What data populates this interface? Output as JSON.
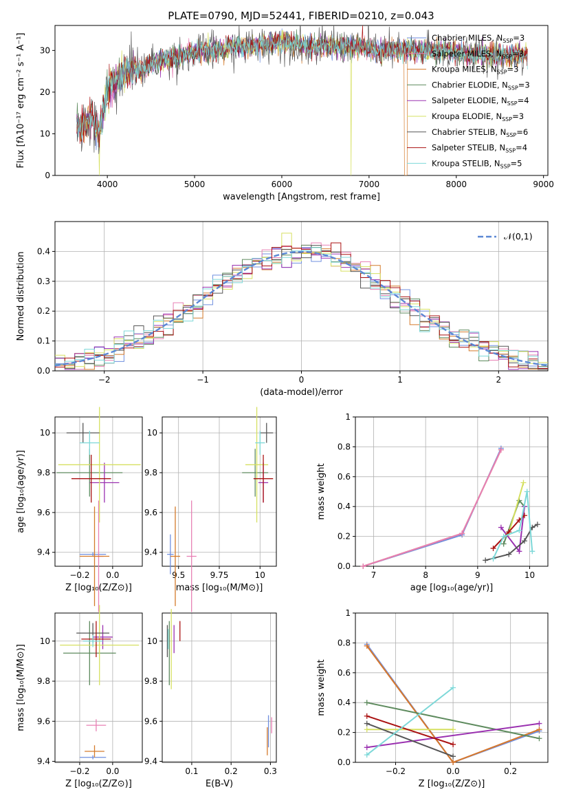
{
  "title": "PLATE=0790, MJD=52441, FIBERID=0210, z=0.043",
  "colors": {
    "Chabrier MILES": "#6f8fdf",
    "Salpeter MILES": "#e87fb4",
    "Kroupa MILES": "#d47a2a",
    "Chabrier ELODIE": "#5d8a5d",
    "Salpeter ELODIE": "#9a30b0",
    "Kroupa ELODIE": "#d6e060",
    "Chabrier STELIB": "#555555",
    "Salpeter STELIB": "#aa1111",
    "Kroupa STELIB": "#7dd8d8"
  },
  "chart_data": [
    {
      "id": "spectrum",
      "type": "line",
      "xlabel": "wavelength [Angstrom, rest frame]",
      "ylabel": "Flux [fλ10⁻¹⁷ erg cm⁻² s⁻¹ A⁻¹]",
      "xlim": [
        3400,
        9050
      ],
      "ylim": [
        0,
        36
      ],
      "xticks": [
        4000,
        5000,
        6000,
        7000,
        8000,
        9000
      ],
      "yticks": [
        0,
        10,
        20,
        30
      ],
      "legend": "right",
      "series": [
        {
          "name": "Chabrier MILES, N_SSP=3",
          "key": "Chabrier MILES"
        },
        {
          "name": "Salpeter MILES, N_SSP=3",
          "key": "Salpeter MILES"
        },
        {
          "name": "Kroupa MILES, N_SSP=3",
          "key": "Kroupa MILES"
        },
        {
          "name": "Chabrier ELODIE, N_SSP=3",
          "key": "Chabrier ELODIE"
        },
        {
          "name": "Salpeter ELODIE, N_SSP=4",
          "key": "Salpeter ELODIE"
        },
        {
          "name": "Kroupa ELODIE, N_SSP=3",
          "key": "Kroupa ELODIE"
        },
        {
          "name": "Chabrier STELIB, N_SSP=6",
          "key": "Chabrier STELIB"
        },
        {
          "name": "Salpeter STELIB, N_SSP=4",
          "key": "Salpeter STELIB"
        },
        {
          "name": "Kroupa STELIB, N_SSP=5",
          "key": "Kroupa STELIB"
        }
      ],
      "envelope": {
        "x": [
          3650,
          3700,
          3800,
          3900,
          4000,
          4100,
          4200,
          4300,
          4400,
          4500,
          4700,
          4900,
          5100,
          5300,
          5500,
          5700,
          5900,
          6100,
          6300,
          6500,
          6700,
          6900,
          7100,
          7300,
          7500,
          7700,
          7900,
          8100,
          8300,
          8500,
          8700,
          8820
        ],
        "y": [
          12,
          11,
          14,
          10,
          20,
          23,
          24,
          26,
          25,
          27,
          28,
          29,
          30,
          30,
          31,
          31,
          32,
          32,
          31,
          31,
          31,
          31,
          30,
          30,
          30,
          30,
          30,
          29,
          29,
          29,
          29,
          29
        ]
      }
    },
    {
      "id": "residuals",
      "type": "histogram",
      "xlabel": "(data-model)/error",
      "ylabel": "Normed distribution",
      "xlim": [
        -2.5,
        2.5
      ],
      "ylim": [
        0,
        0.5
      ],
      "xticks": [
        -2,
        -1,
        0,
        1,
        2
      ],
      "yticks": [
        0.0,
        0.1,
        0.2,
        0.3,
        0.4
      ],
      "legend": "top-right",
      "reference_label": "𝒩(0,1)",
      "bin_width": 0.1
    },
    {
      "id": "age_vs_Z",
      "type": "errorbar",
      "xlabel": "Z [log₁₀(Z/Z⊙)]",
      "ylabel": "age  [log₁₀(age/yr)]",
      "xlim": [
        -0.35,
        0.18
      ],
      "ylim": [
        9.33,
        10.08
      ],
      "xticks": [
        -0.2,
        0.0
      ],
      "yticks": [
        9.4,
        9.6,
        9.8,
        10.0
      ],
      "points": [
        {
          "key": "Chabrier MILES",
          "x": -0.12,
          "xerr": 0.08,
          "y": 9.39,
          "yerr": 0.01
        },
        {
          "key": "Salpeter MILES",
          "x": -0.085,
          "xerr": 0.03,
          "y": 9.38,
          "yerr": 0.28
        },
        {
          "key": "Kroupa MILES",
          "x": -0.11,
          "xerr": 0.09,
          "y": 9.38,
          "yerr": 0.25
        },
        {
          "key": "Chabrier ELODIE",
          "x": -0.14,
          "xerr": 0.2,
          "y": 9.8,
          "yerr": 0.12
        },
        {
          "key": "Salpeter ELODIE",
          "x": -0.05,
          "xerr": 0.09,
          "y": 9.75,
          "yerr": 0.1
        },
        {
          "key": "Kroupa ELODIE",
          "x": -0.08,
          "xerr": 0.25,
          "y": 9.84,
          "yerr": 0.29
        },
        {
          "key": "Chabrier STELIB",
          "x": -0.18,
          "xerr": 0.1,
          "y": 10.0,
          "yerr": 0.05
        },
        {
          "key": "Salpeter STELIB",
          "x": -0.13,
          "xerr": 0.12,
          "y": 9.77,
          "yerr": 0.12
        },
        {
          "key": "Kroupa STELIB",
          "x": -0.14,
          "xerr": 0.06,
          "y": 9.95,
          "yerr": 0.06
        }
      ]
    },
    {
      "id": "age_vs_mass",
      "type": "errorbar",
      "xlabel": "mass [log₁₀(M/M⊙)]",
      "xlim": [
        9.4,
        10.1
      ],
      "ylim": [
        9.33,
        10.08
      ],
      "xticks": [
        9.5,
        9.75,
        10.0
      ],
      "yticks": [
        9.4,
        9.6,
        9.8,
        10.0
      ],
      "points": [
        {
          "key": "Chabrier MILES",
          "x": 9.45,
          "xerr": 0.02,
          "y": 9.39,
          "yerr": 0.1
        },
        {
          "key": "Salpeter MILES",
          "x": 9.58,
          "xerr": 0.03,
          "y": 9.38,
          "yerr": 0.28
        },
        {
          "key": "Kroupa MILES",
          "x": 9.48,
          "xerr": 0.03,
          "y": 9.38,
          "yerr": 0.25
        },
        {
          "key": "Chabrier ELODIE",
          "x": 9.97,
          "xerr": 0.08,
          "y": 9.8,
          "yerr": 0.12
        },
        {
          "key": "Salpeter ELODIE",
          "x": 10.02,
          "xerr": 0.03,
          "y": 9.75,
          "yerr": 0.1
        },
        {
          "key": "Kroupa ELODIE",
          "x": 9.98,
          "xerr": 0.07,
          "y": 9.84,
          "yerr": 0.29
        },
        {
          "key": "Chabrier STELIB",
          "x": 10.04,
          "xerr": 0.04,
          "y": 10.0,
          "yerr": 0.05
        },
        {
          "key": "Salpeter STELIB",
          "x": 10.02,
          "xerr": 0.06,
          "y": 9.77,
          "yerr": 0.12
        },
        {
          "key": "Kroupa STELIB",
          "x": 10.0,
          "xerr": 0.03,
          "y": 9.95,
          "yerr": 0.06
        }
      ]
    },
    {
      "id": "mass_weight_vs_age",
      "type": "line",
      "xlabel": "age  [log₁₀(age/yr)]",
      "ylabel": "mass weight",
      "xlim": [
        6.65,
        10.35
      ],
      "ylim": [
        0,
        1
      ],
      "xticks": [
        7,
        8,
        9,
        10
      ],
      "yticks": [
        0.0,
        0.2,
        0.4,
        0.6,
        0.8,
        1.0
      ],
      "series": [
        {
          "key": "Chabrier MILES",
          "x": [
            6.8,
            8.7,
            9.45
          ],
          "y": [
            0.0,
            0.21,
            0.79
          ]
        },
        {
          "key": "Kroupa MILES",
          "x": [
            6.8,
            8.7,
            9.45
          ],
          "y": [
            0.0,
            0.22,
            0.78
          ]
        },
        {
          "key": "Salpeter MILES",
          "x": [
            6.8,
            8.7,
            9.45
          ],
          "y": [
            0.0,
            0.22,
            0.78
          ]
        },
        {
          "key": "Chabrier ELODIE",
          "x": [
            9.5,
            9.8,
            9.9
          ],
          "y": [
            0.15,
            0.44,
            0.4
          ]
        },
        {
          "key": "Salpeter ELODIE",
          "x": [
            9.45,
            9.8,
            9.9
          ],
          "y": [
            0.26,
            0.1,
            0.4
          ]
        },
        {
          "key": "Kroupa ELODIE",
          "x": [
            9.6,
            9.88
          ],
          "y": [
            0.22,
            0.56
          ]
        },
        {
          "key": "Chabrier STELIB",
          "x": [
            9.15,
            9.6,
            9.9,
            10.05,
            10.15
          ],
          "y": [
            0.04,
            0.08,
            0.17,
            0.26,
            0.28
          ]
        },
        {
          "key": "Salpeter STELIB",
          "x": [
            9.3,
            9.6,
            9.8,
            9.9
          ],
          "y": [
            0.12,
            0.23,
            0.31,
            0.34
          ]
        },
        {
          "key": "Kroupa STELIB",
          "x": [
            9.3,
            9.5,
            9.8,
            9.95,
            10.05
          ],
          "y": [
            0.05,
            0.2,
            0.24,
            0.5,
            0.1
          ]
        }
      ]
    },
    {
      "id": "mass_vs_Z",
      "type": "errorbar",
      "xlabel": "Z [log₁₀(Z/Z⊙)]",
      "ylabel": "mass [log₁₀(M/M⊙)]",
      "xlim": [
        -0.35,
        0.18
      ],
      "ylim": [
        9.395,
        10.14
      ],
      "xticks": [
        -0.2,
        0.0
      ],
      "yticks": [
        9.4,
        9.6,
        9.8,
        10.0
      ],
      "points": [
        {
          "key": "Chabrier MILES",
          "x": -0.12,
          "xerr": 0.08,
          "y": 9.42,
          "yerr": 0.01
        },
        {
          "key": "Salpeter MILES",
          "x": -0.1,
          "xerr": 0.06,
          "y": 9.58,
          "yerr": 0.03
        },
        {
          "key": "Kroupa MILES",
          "x": -0.11,
          "xerr": 0.06,
          "y": 9.45,
          "yerr": 0.03
        },
        {
          "key": "Chabrier ELODIE",
          "x": -0.14,
          "xerr": 0.16,
          "y": 9.94,
          "yerr": 0.16
        },
        {
          "key": "Salpeter ELODIE",
          "x": -0.06,
          "xerr": 0.06,
          "y": 10.02,
          "yerr": 0.06
        },
        {
          "key": "Kroupa ELODIE",
          "x": -0.08,
          "xerr": 0.24,
          "y": 9.98,
          "yerr": 0.2
        },
        {
          "key": "Chabrier STELIB",
          "x": -0.12,
          "xerr": 0.1,
          "y": 10.04,
          "yerr": 0.05
        },
        {
          "key": "Salpeter STELIB",
          "x": -0.1,
          "xerr": 0.09,
          "y": 10.01,
          "yerr": 0.09
        },
        {
          "key": "Kroupa STELIB",
          "x": -0.12,
          "xerr": 0.06,
          "y": 10.0,
          "yerr": 0.03
        }
      ]
    },
    {
      "id": "mass_vs_ebv",
      "type": "errorbar",
      "xlabel": "E(B-V)",
      "xlim": [
        0.025,
        0.315
      ],
      "ylim": [
        9.395,
        10.14
      ],
      "xticks": [
        0.1,
        0.2,
        0.3
      ],
      "yticks": [
        9.4,
        9.6,
        9.8,
        10.0
      ],
      "points": [
        {
          "key": "Chabrier MILES",
          "x": 0.295,
          "xerr": 0,
          "y": 9.55,
          "yerr": 0.08
        },
        {
          "key": "Salpeter MILES",
          "x": 0.303,
          "xerr": 0,
          "y": 9.58,
          "yerr": 0.04
        },
        {
          "key": "Kroupa MILES",
          "x": 0.292,
          "xerr": 0,
          "y": 9.5,
          "yerr": 0.07
        },
        {
          "key": "Chabrier ELODIE",
          "x": 0.043,
          "xerr": 0,
          "y": 9.94,
          "yerr": 0.16
        },
        {
          "key": "Salpeter ELODIE",
          "x": 0.055,
          "xerr": 0,
          "y": 10.01,
          "yerr": 0.07
        },
        {
          "key": "Kroupa ELODIE",
          "x": 0.048,
          "xerr": 0,
          "y": 9.96,
          "yerr": 0.2
        },
        {
          "key": "Chabrier STELIB",
          "x": 0.038,
          "xerr": 0,
          "y": 10.0,
          "yerr": 0.08
        },
        {
          "key": "Salpeter STELIB",
          "x": 0.07,
          "xerr": 0,
          "y": 10.05,
          "yerr": 0.05
        },
        {
          "key": "Kroupa STELIB",
          "x": 0.04,
          "xerr": 0,
          "y": 10.01,
          "yerr": 0.05
        }
      ]
    },
    {
      "id": "mass_weight_vs_Z",
      "type": "line",
      "xlabel": "Z [log₁₀(Z/Z⊙)]",
      "ylabel": "mass weight",
      "xlim": [
        -0.34,
        0.33
      ],
      "ylim": [
        0,
        1
      ],
      "xticks": [
        -0.2,
        0.0,
        0.2
      ],
      "yticks": [
        0.0,
        0.2,
        0.4,
        0.6,
        0.8,
        1.0
      ],
      "series": [
        {
          "key": "Chabrier MILES",
          "x": [
            -0.3,
            0.0,
            0.3
          ],
          "y": [
            0.79,
            0.0,
            0.21
          ]
        },
        {
          "key": "Salpeter MILES",
          "x": [
            -0.3,
            0.0,
            0.3
          ],
          "y": [
            0.78,
            0.0,
            0.22
          ]
        },
        {
          "key": "Kroupa MILES",
          "x": [
            -0.3,
            0.0,
            0.3
          ],
          "y": [
            0.78,
            0.0,
            0.22
          ]
        },
        {
          "key": "Chabrier ELODIE",
          "x": [
            -0.3,
            0.3
          ],
          "y": [
            0.4,
            0.16
          ]
        },
        {
          "key": "Salpeter ELODIE",
          "x": [
            -0.3,
            0.3
          ],
          "y": [
            0.1,
            0.26
          ]
        },
        {
          "key": "Kroupa ELODIE",
          "x": [
            -0.3,
            0.0
          ],
          "y": [
            0.22,
            0.22
          ]
        },
        {
          "key": "Chabrier STELIB",
          "x": [
            -0.3,
            0.0
          ],
          "y": [
            0.26,
            0.04
          ]
        },
        {
          "key": "Salpeter STELIB",
          "x": [
            -0.3,
            0.0
          ],
          "y": [
            0.31,
            0.12
          ]
        },
        {
          "key": "Kroupa STELIB",
          "x": [
            -0.3,
            0.0
          ],
          "y": [
            0.05,
            0.5
          ]
        }
      ]
    }
  ]
}
